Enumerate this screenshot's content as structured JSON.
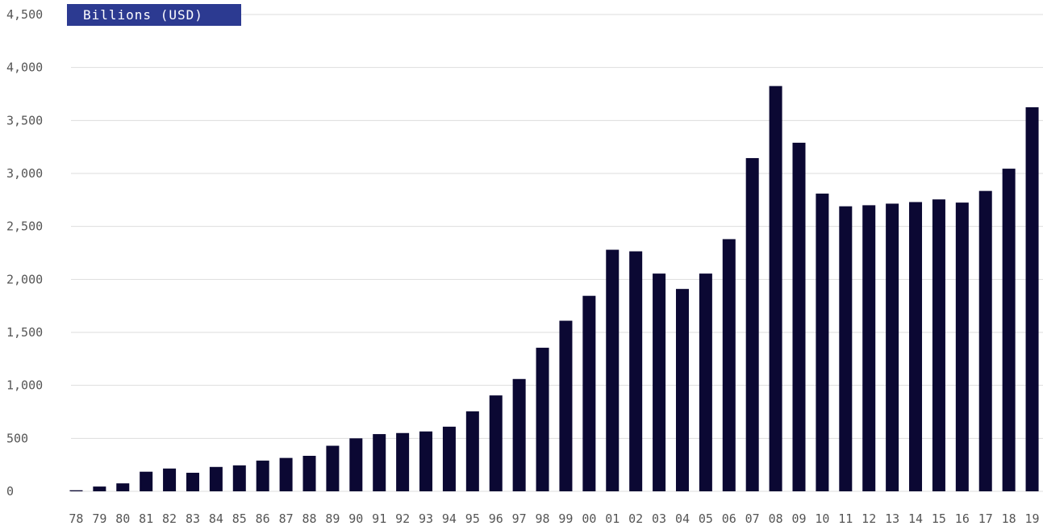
{
  "chart_data": {
    "type": "bar",
    "unit_label": "Billions (USD)",
    "categories": [
      "78",
      "79",
      "80",
      "81",
      "82",
      "83",
      "84",
      "85",
      "86",
      "87",
      "88",
      "89",
      "90",
      "91",
      "92",
      "93",
      "94",
      "95",
      "96",
      "97",
      "98",
      "99",
      "00",
      "01",
      "02",
      "03",
      "04",
      "05",
      "06",
      "07",
      "08",
      "09",
      "10",
      "11",
      "12",
      "13",
      "14",
      "15",
      "16",
      "17",
      "18",
      "19"
    ],
    "values": [
      10,
      45,
      75,
      185,
      215,
      175,
      230,
      245,
      290,
      315,
      335,
      430,
      500,
      540,
      550,
      565,
      610,
      755,
      905,
      1060,
      1355,
      1610,
      1845,
      2280,
      2265,
      2055,
      1910,
      2055,
      2380,
      3145,
      3825,
      3290,
      2810,
      2690,
      2700,
      2715,
      2730,
      2755,
      2725,
      2835,
      3045,
      3625
    ],
    "ylim": [
      0,
      4500
    ],
    "yticks": [
      "0",
      "500",
      "1,000",
      "1,500",
      "2,000",
      "2,500",
      "3,000",
      "3,500",
      "4,000",
      "4,500"
    ],
    "grid": true,
    "colors": {
      "bar": "#0b0833",
      "red": "#ef4136",
      "tan": "#c39a6b",
      "blue": "#2c3a91",
      "dark_red": "#c8202f",
      "grid": "#dddddd"
    }
  }
}
